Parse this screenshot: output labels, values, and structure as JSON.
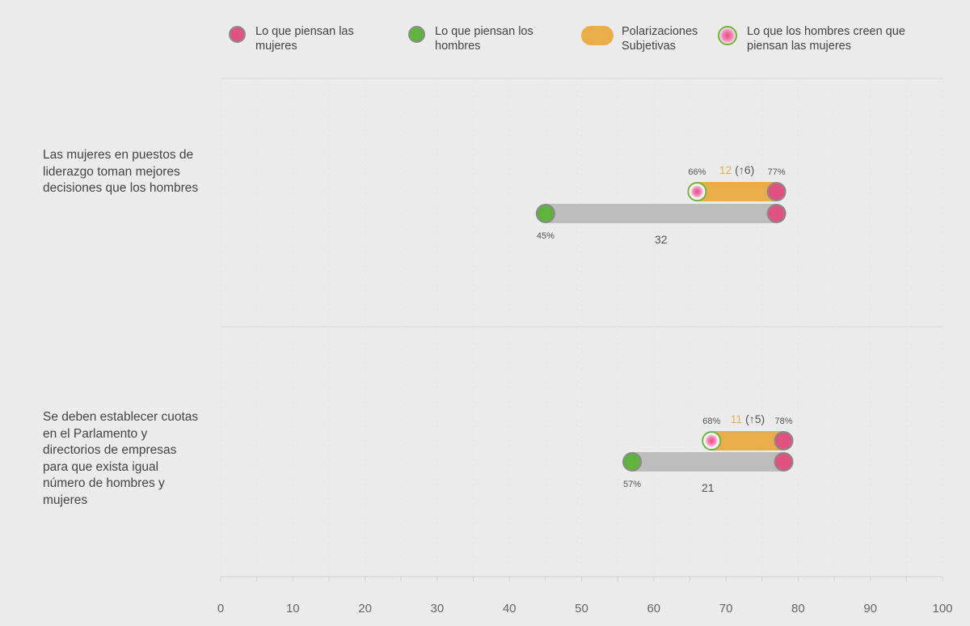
{
  "legend": {
    "women": "Lo que piensan las mujeres",
    "men": "Lo que piensan los hombres",
    "polarization": "Polarizaciones Subjetivas",
    "men_believe": "Lo que los hombres creen que piensan las mujeres"
  },
  "colors": {
    "women": "#e0527f",
    "men": "#5fb33e",
    "polarization": "#e9ad4a",
    "gap_bar": "#bdbdbd",
    "men_believe_ring": "#6cb33f"
  },
  "chart_data": {
    "type": "dumbbell",
    "xlim": [
      0,
      100
    ],
    "x_ticks": [
      0,
      10,
      20,
      30,
      40,
      50,
      60,
      70,
      80,
      90,
      100
    ],
    "rows": [
      {
        "label": "Las mujeres en puestos de liderazgo toman mejores decisiones que los hombres",
        "women": 77,
        "women_label": "77%",
        "men": 45,
        "men_label": "45%",
        "men_believe_women": 66,
        "men_believe_label": "66%",
        "subjective_polarization": 12,
        "subjective_change": "(↑6)",
        "real_gap": 32
      },
      {
        "label": "Se deben establecer cuotas en el Parlamento y directorios de empresas para que exista igual número de hombres y mujeres",
        "women": 78,
        "women_label": "78%",
        "men": 57,
        "men_label": "57%",
        "men_believe_women": 68,
        "men_believe_label": "68%",
        "subjective_polarization": 11,
        "subjective_change": "(↑5)",
        "real_gap": 21
      }
    ]
  }
}
